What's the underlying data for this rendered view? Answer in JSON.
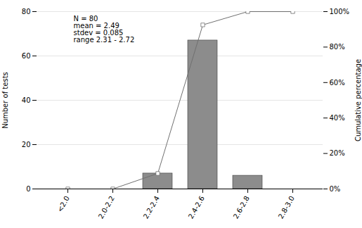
{
  "chart_data": {
    "type": "bar",
    "categories": [
      "<2.0",
      "2.0-2.2",
      "2.2-2.4",
      "2.4-2.6",
      "2.6-2.8",
      "2.8-3.0"
    ],
    "series": [
      {
        "type": "bar",
        "color": "#8c8c8c",
        "values": [
          0,
          0,
          7,
          67,
          6,
          0
        ]
      },
      {
        "type": "line",
        "axis": "y2",
        "color": "#707070",
        "marker": "square",
        "values": [
          0.0,
          0.0,
          8.75,
          92.5,
          100.0,
          100.0
        ]
      }
    ],
    "ylabel": "Number of tests",
    "y2label": "Cumulative percentage",
    "ylim": [
      0,
      80
    ],
    "yticks": [
      0,
      20,
      40,
      60,
      80
    ],
    "y2lim": [
      0,
      100
    ],
    "y2ticks": [
      {
        "value": 0,
        "label": "0%"
      },
      {
        "value": 20,
        "label": "20%"
      },
      {
        "value": 40,
        "label": "40%"
      },
      {
        "value": 60,
        "label": "60%"
      },
      {
        "value": 80,
        "label": "80%"
      },
      {
        "value": 100,
        "label": "100%"
      }
    ],
    "grid": true,
    "annotation": "N = 80\nmean = 2.49\nstdev = 0.085\nrange 2.31 - 2.72"
  }
}
